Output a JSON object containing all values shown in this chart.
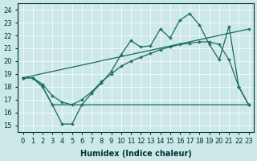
{
  "xlabel": "Humidex (Indice chaleur)",
  "bg_color": "#cce8e8",
  "grid_color": "#ffffff",
  "line_color": "#1a6b5a",
  "xlim": [
    -0.5,
    23.5
  ],
  "ylim": [
    14.5,
    24.5
  ],
  "yticks": [
    15,
    16,
    17,
    18,
    19,
    20,
    21,
    22,
    23,
    24
  ],
  "xticks": [
    0,
    1,
    2,
    3,
    4,
    5,
    6,
    7,
    8,
    9,
    10,
    11,
    12,
    13,
    14,
    15,
    16,
    17,
    18,
    19,
    20,
    21,
    22,
    23
  ],
  "line_trend_x": [
    0,
    23
  ],
  "line_trend_y": [
    18.7,
    22.5
  ],
  "line_flat_x": [
    0,
    1,
    2,
    3,
    4,
    5,
    6,
    7,
    8,
    9,
    10,
    11,
    12,
    13,
    14,
    15,
    16,
    17,
    18,
    19,
    20,
    21,
    22,
    23
  ],
  "line_flat_y": [
    18.7,
    18.7,
    18.0,
    16.6,
    16.6,
    16.6,
    16.6,
    16.6,
    16.6,
    16.6,
    16.6,
    16.6,
    16.6,
    16.6,
    16.6,
    16.6,
    16.6,
    16.6,
    16.6,
    16.6,
    16.6,
    16.6,
    16.6,
    16.6
  ],
  "line_zigzag_x": [
    0,
    1,
    2,
    3,
    4,
    5,
    6,
    7,
    8,
    9,
    10,
    11,
    12,
    13,
    14,
    15,
    16,
    17,
    18,
    19,
    20,
    21,
    22,
    23
  ],
  "line_zigzag_y": [
    18.7,
    18.7,
    18.0,
    16.6,
    15.1,
    15.1,
    16.6,
    17.5,
    18.3,
    19.2,
    20.5,
    21.6,
    21.1,
    21.2,
    22.5,
    21.8,
    23.2,
    23.7,
    22.8,
    21.3,
    20.1,
    22.7,
    18.0,
    16.6
  ],
  "line_smooth_x": [
    0,
    1,
    2,
    3,
    4,
    5,
    6,
    7,
    8,
    9,
    10,
    11,
    12,
    13,
    14,
    15,
    16,
    17,
    18,
    19,
    20,
    21,
    22,
    23
  ],
  "line_smooth_y": [
    18.7,
    18.7,
    18.2,
    17.3,
    16.8,
    16.6,
    17.0,
    17.6,
    18.4,
    19.0,
    19.6,
    20.0,
    20.3,
    20.6,
    20.9,
    21.1,
    21.3,
    21.4,
    21.5,
    21.5,
    21.3,
    20.1,
    18.0,
    16.6
  ]
}
